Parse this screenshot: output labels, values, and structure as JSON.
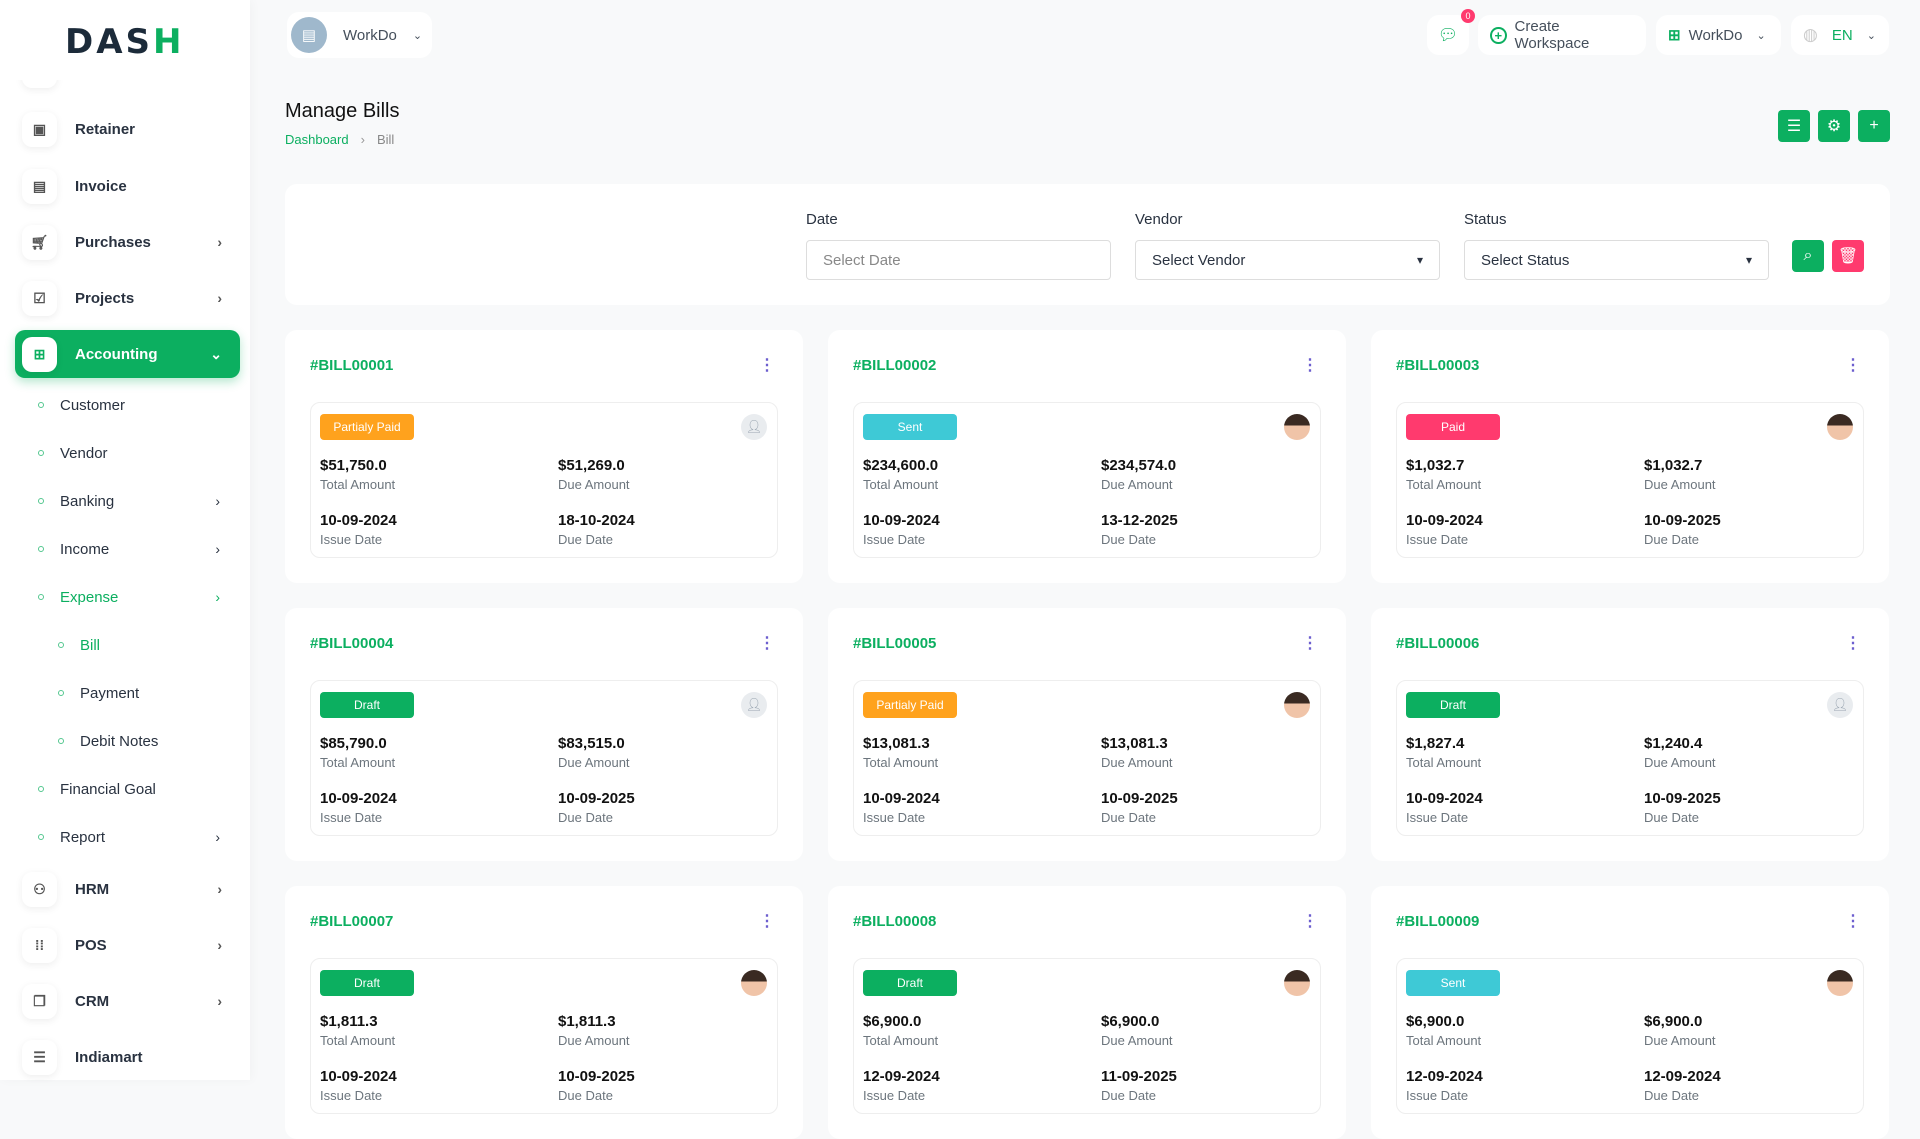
{
  "brand": {
    "logo": "DASH"
  },
  "header": {
    "workspace": "WorkDo",
    "notifications": "0",
    "create_workspace": "Create Workspace",
    "workspace_menu": "WorkDo",
    "language": "EN"
  },
  "page": {
    "title": "Manage Bills",
    "breadcrumb": [
      "Dashboard",
      "Bill"
    ]
  },
  "filters": {
    "date_label": "Date",
    "date_placeholder": "Select Date",
    "vendor_label": "Vendor",
    "vendor_value": "Select Vendor",
    "status_label": "Status",
    "status_value": "Select Status"
  },
  "sidebar": {
    "items": [
      {
        "label": "Retainer",
        "icon": "save-icon"
      },
      {
        "label": "Invoice",
        "icon": "file-icon"
      },
      {
        "label": "Purchases",
        "icon": "cart-icon",
        "chev": true
      },
      {
        "label": "Projects",
        "icon": "checkbox-icon",
        "chev": true
      },
      {
        "label": "Accounting",
        "icon": "apps-icon",
        "chev": true,
        "active": true
      },
      {
        "label": "Customer",
        "sub": 1
      },
      {
        "label": "Vendor",
        "sub": 1
      },
      {
        "label": "Banking",
        "sub": 1,
        "chev": true
      },
      {
        "label": "Income",
        "sub": 1,
        "chev": true
      },
      {
        "label": "Expense",
        "sub": 1,
        "chev": true,
        "active": true
      },
      {
        "label": "Bill",
        "sub": 2,
        "active": true
      },
      {
        "label": "Payment",
        "sub": 2
      },
      {
        "label": "Debit Notes",
        "sub": 2
      },
      {
        "label": "Financial Goal",
        "sub": 1
      },
      {
        "label": "Report",
        "sub": 1,
        "chev": true
      },
      {
        "label": "HRM",
        "icon": "users-icon",
        "chev": true
      },
      {
        "label": "POS",
        "icon": "grid-icon",
        "chev": true
      },
      {
        "label": "CRM",
        "icon": "layers-icon",
        "chev": true
      },
      {
        "label": "Indiamart",
        "icon": "list-icon"
      }
    ]
  },
  "labels": {
    "total": "Total Amount",
    "due": "Due Amount",
    "issue": "Issue Date",
    "due_date": "Due Date"
  },
  "status_colors": {
    "Partialy Paid": "#FFA21D",
    "Sent": "#3EC9D6",
    "Paid": "#FF3A6E",
    "Draft": "#0CAF60"
  },
  "bills": [
    {
      "number": "#BILL00001",
      "status": "Partialy Paid",
      "total": "$51,750.0",
      "due": "$51,269.0",
      "issue_date": "10-09-2024",
      "due_date": "18-10-2024",
      "avatar": "default"
    },
    {
      "number": "#BILL00002",
      "status": "Sent",
      "total": "$234,600.0",
      "due": "$234,574.0",
      "issue_date": "10-09-2024",
      "due_date": "13-12-2025",
      "avatar": "photo"
    },
    {
      "number": "#BILL00003",
      "status": "Paid",
      "total": "$1,032.7",
      "due": "$1,032.7",
      "issue_date": "10-09-2024",
      "due_date": "10-09-2025",
      "avatar": "photo"
    },
    {
      "number": "#BILL00004",
      "status": "Draft",
      "total": "$85,790.0",
      "due": "$83,515.0",
      "issue_date": "10-09-2024",
      "due_date": "10-09-2025",
      "avatar": "default"
    },
    {
      "number": "#BILL00005",
      "status": "Partialy Paid",
      "total": "$13,081.3",
      "due": "$13,081.3",
      "issue_date": "10-09-2024",
      "due_date": "10-09-2025",
      "avatar": "photo"
    },
    {
      "number": "#BILL00006",
      "status": "Draft",
      "total": "$1,827.4",
      "due": "$1,240.4",
      "issue_date": "10-09-2024",
      "due_date": "10-09-2025",
      "avatar": "default"
    },
    {
      "number": "#BILL00007",
      "status": "Draft",
      "total": "$1,811.3",
      "due": "$1,811.3",
      "issue_date": "10-09-2024",
      "due_date": "10-09-2025",
      "avatar": "photo"
    },
    {
      "number": "#BILL00008",
      "status": "Draft",
      "total": "$6,900.0",
      "due": "$6,900.0",
      "issue_date": "12-09-2024",
      "due_date": "11-09-2025",
      "avatar": "photo"
    },
    {
      "number": "#BILL00009",
      "status": "Sent",
      "total": "$6,900.0",
      "due": "$6,900.0",
      "issue_date": "12-09-2024",
      "due_date": "12-09-2024",
      "avatar": "photo"
    }
  ]
}
